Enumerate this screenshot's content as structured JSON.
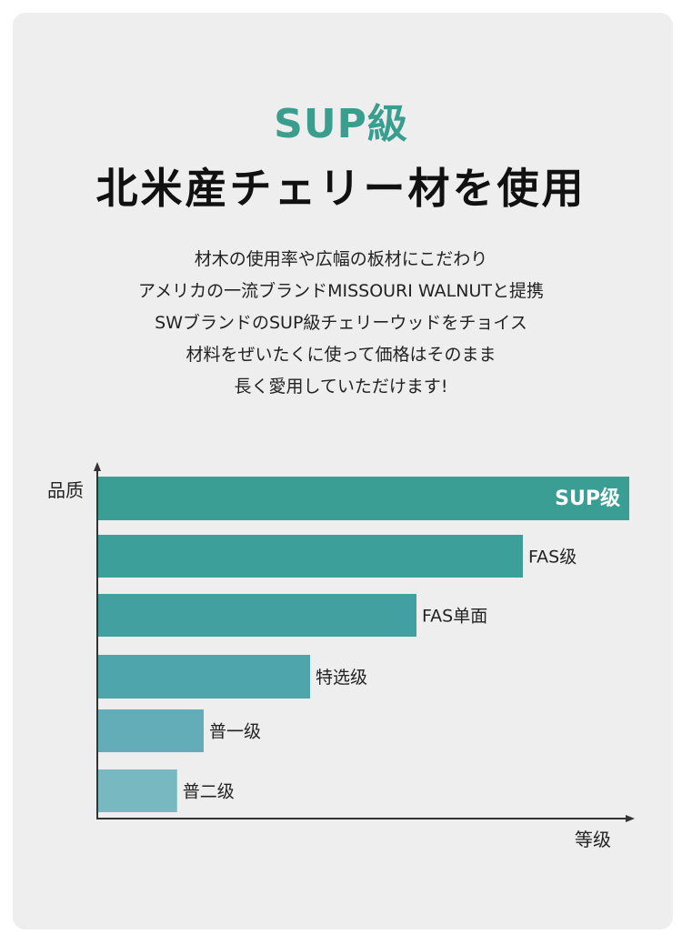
{
  "header": {
    "title_accent": "SUP級",
    "title_main": "北米産チェリー材を使用"
  },
  "description": [
    "材木の使用率や広幅の板材にこだわり",
    "アメリカの一流ブランドMISSOURI WALNUTと提携",
    "SWブランドのSUP級チェリーウッドをチョイス",
    "材料をぜいたくに使って価格はそのまま",
    "長く愛用していただけます!"
  ],
  "colors": {
    "accent": "#3a9e8f",
    "bars": [
      "#3a9e94",
      "#3d9f99",
      "#42a0a0",
      "#4ea6ac",
      "#63adb8",
      "#78b8c0"
    ]
  },
  "chart_data": {
    "type": "bar",
    "orientation": "horizontal",
    "ylabel": "品质",
    "xlabel": "等级",
    "xlim": [
      0,
      100
    ],
    "categories": [
      "SUP级",
      "FAS级",
      "FAS单面",
      "特选级",
      "普一级",
      "普二级"
    ],
    "values": [
      100,
      80,
      60,
      40,
      20,
      15
    ],
    "grid": false,
    "legend": "none"
  }
}
